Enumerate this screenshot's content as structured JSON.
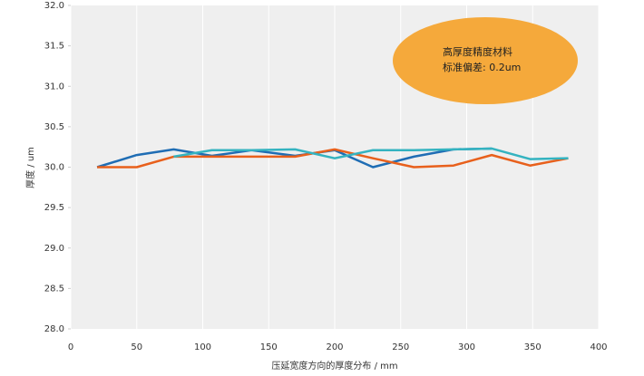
{
  "chart_data": {
    "type": "line",
    "xlabel": "压延宽度方向的厚度分布 / mm",
    "ylabel": "厚度 / um",
    "annotations": [
      "高厚度精度材料",
      "标准偏差: 0.2um"
    ],
    "annotation_color": "#f5a93b",
    "x": [
      20,
      50,
      78,
      107,
      137,
      170,
      200,
      229,
      260,
      290,
      319,
      348,
      377
    ],
    "series": [
      {
        "color": "#1f6db4",
        "values": [
          30.0,
          30.15,
          30.22,
          30.14,
          30.21,
          30.14,
          30.21,
          30.0,
          30.13,
          30.22,
          30.23,
          null,
          null
        ]
      },
      {
        "color": "#e8601c",
        "values": [
          30.0,
          30.0,
          30.13,
          30.13,
          30.13,
          30.13,
          30.22,
          30.11,
          30.0,
          30.02,
          30.15,
          30.02,
          30.11
        ]
      },
      {
        "color": "#34b3c0",
        "values": [
          null,
          null,
          30.13,
          30.21,
          30.21,
          30.22,
          30.11,
          30.21,
          30.21,
          30.22,
          30.23,
          30.1,
          30.11
        ]
      }
    ],
    "xlim": [
      0,
      400
    ],
    "xticks": [
      0,
      50,
      100,
      150,
      200,
      250,
      300,
      350,
      400
    ],
    "ylim": [
      28.0,
      32.0
    ],
    "yticks": [
      {
        "value": 28.0,
        "label": "28.0"
      },
      {
        "value": 28.5,
        "label": "28.5"
      },
      {
        "value": 29.0,
        "label": "29.0"
      },
      {
        "value": 29.5,
        "label": "29.5"
      },
      {
        "value": 30.0,
        "label": "30.0"
      },
      {
        "value": 30.5,
        "label": "30.5"
      },
      {
        "value": 31.0,
        "label": "31.0"
      },
      {
        "value": 31.5,
        "label": "31.5"
      },
      {
        "value": 32.0,
        "label": "32.0"
      }
    ],
    "grid": true
  }
}
